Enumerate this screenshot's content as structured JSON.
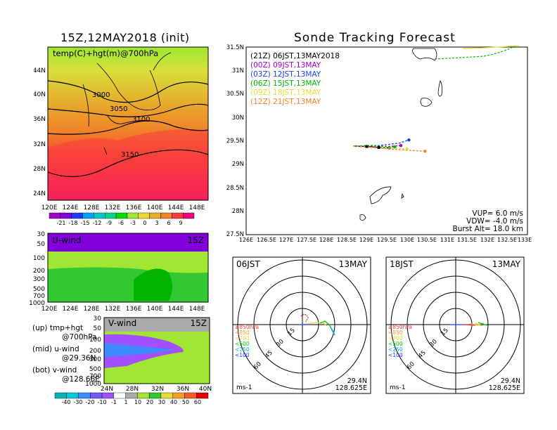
{
  "left_title": "15Z,12MAY2018 (init)",
  "right_title": "Sonde Tracking Forecast",
  "map_panel": {
    "label": "temp(C)+hgt(m)@700hPa",
    "contour_labels": [
      "3000",
      "3050",
      "3100",
      "3150"
    ],
    "x_ticks": [
      "120E",
      "124E",
      "128E",
      "132E",
      "136E",
      "140E",
      "144E",
      "148E"
    ],
    "y_ticks": [
      "44N",
      "40N",
      "36N",
      "32N",
      "28N",
      "24N"
    ],
    "colorbar_labels": [
      "-21",
      "-18",
      "-15",
      "-12",
      "-9",
      "-6",
      "-3",
      "0",
      "3",
      "6",
      "9"
    ],
    "colorbar_colors": [
      "#a000c8",
      "#8200dc",
      "#1e3cff",
      "#00a0ff",
      "#00c8c8",
      "#00d28c",
      "#00dc00",
      "#a0e632",
      "#e6dc32",
      "#e6af2d",
      "#f08228",
      "#fa3c3c",
      "#f00082"
    ]
  },
  "uwind_panel": {
    "label": "U-wind",
    "time": "15Z",
    "x_ticks": [
      "120E",
      "124E",
      "128E",
      "132E",
      "136E",
      "140E",
      "144E",
      "148E"
    ],
    "y_ticks": [
      "30",
      "50",
      "100",
      "200",
      "300",
      "500",
      "700",
      "1000"
    ]
  },
  "vwind_panel": {
    "label": "V-wind",
    "time": "15Z",
    "x_ticks": [
      "24N",
      "28N",
      "32N",
      "36N",
      "40N"
    ],
    "y_ticks": [
      "30",
      "50",
      "100",
      "200",
      "300",
      "500",
      "700",
      "1000"
    ],
    "colorbar_labels": [
      "-40",
      "-30",
      "-20",
      "-10",
      "-1",
      "1",
      "10",
      "20",
      "30",
      "40",
      "50",
      "60"
    ],
    "colorbar_colors": [
      "#00b4b4",
      "#00c8dc",
      "#3c8cff",
      "#6e5aff",
      "#a050ff",
      "#ffffff",
      "#aaaaaa",
      "#a0e632",
      "#32c832",
      "#e6dc32",
      "#f0a028",
      "#fa5a28",
      "#e60000"
    ]
  },
  "side_notes": [
    "(up) tmp+hgt",
    "@700hPa",
    "(mid) u-wind",
    "@29.36N",
    "(bot) v-wind",
    "@128.66E"
  ],
  "tracking": {
    "legend": [
      {
        "text": "(21Z) 06JST,13MAY2018",
        "color": "#000000"
      },
      {
        "text": "(00Z) 09JST,13MAY",
        "color": "#a000c8"
      },
      {
        "text": "(03Z) 12JST,13MAY",
        "color": "#1e3cff"
      },
      {
        "text": "(06Z) 15JST,13MAY",
        "color": "#00b400"
      },
      {
        "text": "(09Z) 18JST,13MAY",
        "color": "#e6dc32"
      },
      {
        "text": "(12Z) 21JST,13MAY",
        "color": "#f08228"
      }
    ],
    "x_ticks": [
      "126E",
      "126.5E",
      "127E",
      "127.5E",
      "128E",
      "128.5E",
      "129E",
      "129.5E",
      "130E",
      "130.5E",
      "131E",
      "131.5E",
      "132E",
      "132.5E",
      "133E"
    ],
    "y_ticks": [
      "31.5N",
      "31N",
      "30.5N",
      "30N",
      "29.5N",
      "29N",
      "28.5N",
      "28N",
      "27.5N"
    ],
    "params": [
      "VUP= 6.0 m/s",
      "VDW= -4.0 m/s",
      "Burst Alt= 18.0 km"
    ]
  },
  "hodographs": [
    {
      "time": "06JST",
      "date": "13MAY",
      "lat": "29.4N",
      "lon": "128.625E",
      "unit": "ms-1",
      "ring_labels": [
        "15",
        "30",
        "45",
        "60"
      ],
      "levels": [
        {
          "text": "≥850hPa",
          "color": "#f03c3c"
        },
        {
          "text": "<850",
          "color": "#f0a028"
        },
        {
          "text": "<700",
          "color": "#e6dc32"
        },
        {
          "text": "<500",
          "color": "#00c800"
        },
        {
          "text": "<250",
          "color": "#00b4dc"
        },
        {
          "text": "<100",
          "color": "#1e3cff"
        }
      ]
    },
    {
      "time": "18JST",
      "date": "13MAY",
      "lat": "29.4N",
      "lon": "128.625E",
      "unit": "ms-1",
      "ring_labels": [
        "15",
        "30",
        "45",
        "60"
      ],
      "levels": [
        {
          "text": "≥850hPa",
          "color": "#f03c3c"
        },
        {
          "text": "<850",
          "color": "#f0a028"
        },
        {
          "text": "<700",
          "color": "#e6dc32"
        },
        {
          "text": "<500",
          "color": "#00c800"
        },
        {
          "text": "<250",
          "color": "#00b4dc"
        },
        {
          "text": "<100",
          "color": "#1e3cff"
        }
      ]
    }
  ],
  "chart_data": [
    {
      "type": "heatmap",
      "title": "temp(C)+hgt(m)@700hPa",
      "xlim": [
        120,
        150
      ],
      "ylim": [
        22,
        47
      ],
      "contour_levels": [
        3000,
        3050,
        3100,
        3150
      ],
      "color_levels": [
        -21,
        -18,
        -15,
        -12,
        -9,
        -6,
        -3,
        0,
        3,
        6,
        9
      ]
    },
    {
      "type": "heatmap",
      "title": "U-wind",
      "xlim": [
        120,
        150
      ],
      "y_levels_hPa": [
        30,
        50,
        100,
        200,
        300,
        500,
        700,
        1000
      ]
    },
    {
      "type": "heatmap",
      "title": "V-wind",
      "xlim": [
        24,
        40
      ],
      "y_levels_hPa": [
        30,
        50,
        100,
        200,
        300,
        500,
        700,
        1000
      ],
      "color_levels": [
        -40,
        -30,
        -20,
        -10,
        -1,
        1,
        10,
        20,
        30,
        40,
        50,
        60
      ]
    },
    {
      "type": "line",
      "title": "Sonde Tracking Forecast",
      "xlim": [
        126,
        133
      ],
      "ylim": [
        27.5,
        31.5
      ],
      "series": [
        {
          "name": "(21Z) 06JST,13MAY2018",
          "color": "#000000",
          "x": [
            128.66,
            129.0,
            129.3,
            129.56
          ],
          "y": [
            29.39,
            29.38,
            29.36,
            29.35
          ]
        },
        {
          "name": "(00Z) 09JST,13MAY",
          "color": "#a000c8",
          "x": [
            128.66,
            129.1,
            129.5,
            129.85
          ],
          "y": [
            29.39,
            29.39,
            29.38,
            29.4
          ]
        },
        {
          "name": "(03Z) 12JST,13MAY",
          "color": "#1e3cff",
          "x": [
            128.66,
            129.3,
            129.8,
            130.05
          ],
          "y": [
            29.39,
            29.4,
            29.45,
            29.52
          ]
        },
        {
          "name": "(06Z) 15JST,13MAY",
          "color": "#00b400",
          "x": [
            128.66,
            129.1,
            129.5,
            129.7
          ],
          "y": [
            29.39,
            29.4,
            29.38,
            29.37
          ]
        },
        {
          "name": "(09Z) 18JST,13MAY",
          "color": "#e6dc32",
          "x": [
            128.66,
            129.2,
            129.6,
            130.0
          ],
          "y": [
            29.39,
            29.36,
            29.35,
            29.33
          ]
        },
        {
          "name": "(12Z) 21JST,13MAY",
          "color": "#f08228",
          "x": [
            128.66,
            129.4,
            130.0,
            130.45
          ],
          "y": [
            29.39,
            29.34,
            29.3,
            29.28
          ]
        }
      ]
    }
  ]
}
